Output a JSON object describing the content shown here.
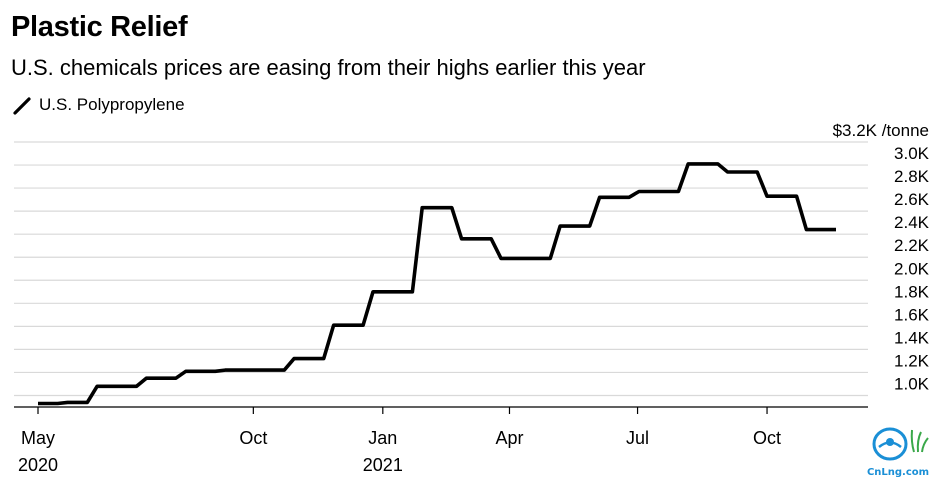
{
  "title": "Plastic Relief",
  "subtitle": "U.S. chemicals prices are easing from their highs earlier this year",
  "legend": {
    "label": "U.S. Polypropylene",
    "icon": "line-swatch-icon"
  },
  "watermark": {
    "text": "CnLng.com",
    "color": "#1a8fd6"
  },
  "colors": {
    "line": "#000000",
    "grid": "#d9d9d9",
    "axis": "#000000"
  },
  "chart_data": {
    "type": "line",
    "title": "Plastic Relief",
    "subtitle": "U.S. chemicals prices are easing from their highs earlier this year",
    "ylabel": "$3.2K /tonne",
    "ylim": [
      0.9,
      3.2
    ],
    "yticks": [
      {
        "v": 3.2,
        "label": "$3.2K /tonne"
      },
      {
        "v": 3.0,
        "label": "3.0K"
      },
      {
        "v": 2.8,
        "label": "2.8K"
      },
      {
        "v": 2.6,
        "label": "2.6K"
      },
      {
        "v": 2.4,
        "label": "2.4K"
      },
      {
        "v": 2.2,
        "label": "2.2K"
      },
      {
        "v": 2.0,
        "label": "2.0K"
      },
      {
        "v": 1.8,
        "label": "1.8K"
      },
      {
        "v": 1.6,
        "label": "1.6K"
      },
      {
        "v": 1.4,
        "label": "1.4K"
      },
      {
        "v": 1.2,
        "label": "1.2K"
      },
      {
        "v": 1.0,
        "label": "1.0K"
      }
    ],
    "xticks": [
      {
        "date": "2020-05-01",
        "label": "May",
        "sublabel": "2020"
      },
      {
        "date": "2020-10-01",
        "label": "Oct",
        "sublabel": ""
      },
      {
        "date": "2021-01-01",
        "label": "Jan",
        "sublabel": "2021"
      },
      {
        "date": "2021-04-01",
        "label": "Apr",
        "sublabel": ""
      },
      {
        "date": "2021-07-01",
        "label": "Jul",
        "sublabel": ""
      },
      {
        "date": "2021-10-01",
        "label": "Oct",
        "sublabel": ""
      }
    ],
    "grid": true,
    "series": [
      {
        "name": "U.S. Polypropylene",
        "points": [
          [
            "2020-05-01",
            0.93
          ],
          [
            "2020-05-15",
            0.93
          ],
          [
            "2020-05-22",
            0.94
          ],
          [
            "2020-06-05",
            0.94
          ],
          [
            "2020-06-12",
            1.08
          ],
          [
            "2020-07-10",
            1.08
          ],
          [
            "2020-07-17",
            1.15
          ],
          [
            "2020-08-07",
            1.15
          ],
          [
            "2020-08-14",
            1.21
          ],
          [
            "2020-09-04",
            1.21
          ],
          [
            "2020-09-11",
            1.22
          ],
          [
            "2020-10-23",
            1.22
          ],
          [
            "2020-10-30",
            1.32
          ],
          [
            "2020-11-20",
            1.32
          ],
          [
            "2020-11-27",
            1.61
          ],
          [
            "2020-12-18",
            1.61
          ],
          [
            "2020-12-25",
            1.9
          ],
          [
            "2021-01-22",
            1.9
          ],
          [
            "2021-01-29",
            2.63
          ],
          [
            "2021-02-19",
            2.63
          ],
          [
            "2021-02-26",
            2.36
          ],
          [
            "2021-03-19",
            2.36
          ],
          [
            "2021-03-26",
            2.19
          ],
          [
            "2021-04-30",
            2.19
          ],
          [
            "2021-05-07",
            2.47
          ],
          [
            "2021-05-28",
            2.47
          ],
          [
            "2021-06-04",
            2.72
          ],
          [
            "2021-06-25",
            2.72
          ],
          [
            "2021-07-02",
            2.77
          ],
          [
            "2021-07-30",
            2.77
          ],
          [
            "2021-08-06",
            3.01
          ],
          [
            "2021-08-27",
            3.01
          ],
          [
            "2021-09-03",
            2.94
          ],
          [
            "2021-09-24",
            2.94
          ],
          [
            "2021-10-01",
            2.73
          ],
          [
            "2021-10-22",
            2.73
          ],
          [
            "2021-10-29",
            2.44
          ],
          [
            "2021-11-19",
            2.44
          ]
        ]
      }
    ]
  }
}
